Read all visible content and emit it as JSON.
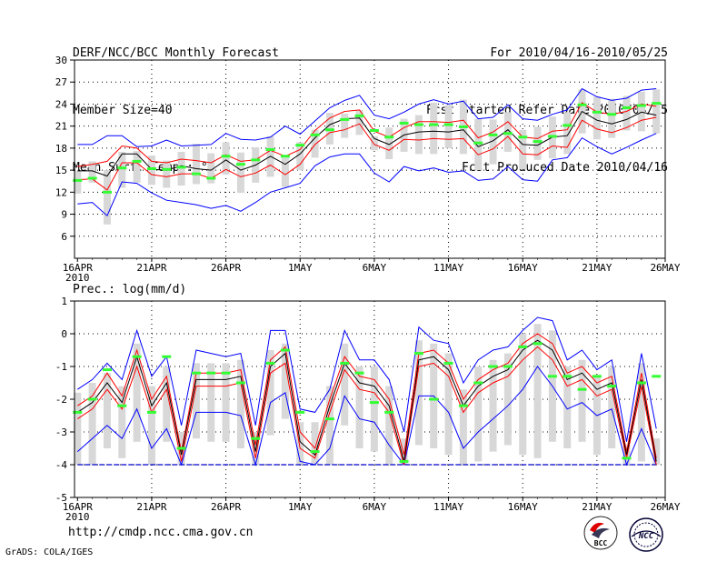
{
  "header": {
    "title": "DERF/NCC/BCC Monthly Forecast",
    "member_size": "Member Size=40",
    "variable": "Mean Surf. Temp.: °C",
    "period": "For 2010/04/16-2010/05/25",
    "started": "Fcst Started Refer Date 2010/04/15",
    "produced": "Fcst Produced Date 2010/04/16"
  },
  "footer": {
    "url": "http://cmdp.ncc.cma.gov.cn",
    "credit": "GrADS: COLA/IGES",
    "logo_left": "BCC",
    "logo_right": "NCC"
  },
  "colors": {
    "upper": "#0000ff",
    "bound": "#ff0000",
    "median": "#000000",
    "obs": "#33ff33",
    "box": "#d8d8d8",
    "axis_line": "#0000cc"
  },
  "chart_data": [
    {
      "type": "line",
      "title": "Mean Surf. Temp.: °C",
      "x_tick_labels": [
        "16APR",
        "21APR",
        "26APR",
        "1MAY",
        "6MAY",
        "11MAY",
        "16MAY",
        "21MAY",
        "26MAY"
      ],
      "x_year_label": "2010",
      "days": 40,
      "ylim": [
        3,
        30
      ],
      "yticks": [
        6,
        9,
        12,
        15,
        18,
        21,
        24,
        27,
        30
      ],
      "series": [
        {
          "name": "max",
          "values": [
            18.5,
            18.5,
            19.7,
            19.7,
            18.2,
            18.3,
            19.1,
            18.3,
            18.4,
            18.5,
            20.0,
            19.2,
            19.1,
            19.5,
            21.0,
            19.9,
            21.7,
            23.5,
            24.5,
            25.2,
            22.5,
            22.0,
            22.9,
            24.0,
            24.6,
            24.0,
            24.4,
            22.0,
            22.2,
            23.9,
            22.0,
            21.8,
            22.6,
            23.2,
            26.1,
            25.0,
            24.5,
            24.8,
            25.9,
            26.1
          ]
        },
        {
          "name": "upper",
          "values": [
            15.5,
            15.8,
            16.2,
            18.3,
            18.0,
            16.2,
            16.0,
            16.5,
            16.3,
            16.0,
            17.1,
            16.2,
            16.4,
            17.7,
            16.9,
            17.8,
            20.4,
            22.1,
            23.0,
            23.2,
            20.3,
            19.5,
            20.8,
            21.6,
            21.6,
            21.5,
            21.8,
            19.4,
            20.2,
            21.6,
            19.5,
            19.3,
            20.3,
            20.5,
            24.2,
            22.9,
            22.6,
            23.0,
            24.0,
            23.7
          ]
        },
        {
          "name": "median",
          "values": [
            14.9,
            14.9,
            14.2,
            17.2,
            17.2,
            15.1,
            15.0,
            15.6,
            15.2,
            15.0,
            16.4,
            15.0,
            15.7,
            16.9,
            15.8,
            17.2,
            19.4,
            21.2,
            22.0,
            22.1,
            19.3,
            18.5,
            19.8,
            20.2,
            20.3,
            20.2,
            20.5,
            18.2,
            19.0,
            20.5,
            18.5,
            18.4,
            19.5,
            19.7,
            23.0,
            21.8,
            21.3,
            21.9,
            22.9,
            22.5
          ]
        },
        {
          "name": "lower",
          "values": [
            13.7,
            13.8,
            12.3,
            16.0,
            16.0,
            14.4,
            14.1,
            14.5,
            14.5,
            13.9,
            15.1,
            14.1,
            14.6,
            15.7,
            14.4,
            15.8,
            18.5,
            20.1,
            20.5,
            21.3,
            18.5,
            17.7,
            19.2,
            19.1,
            19.3,
            19.2,
            19.3,
            17.1,
            17.9,
            19.6,
            17.2,
            17.1,
            18.3,
            18.1,
            21.8,
            20.6,
            20.1,
            20.8,
            21.8,
            22.2
          ]
        },
        {
          "name": "min",
          "values": [
            10.4,
            10.6,
            8.8,
            13.4,
            13.2,
            11.9,
            10.9,
            10.6,
            10.3,
            9.8,
            10.2,
            9.4,
            10.6,
            12.0,
            12.6,
            13.2,
            15.6,
            16.8,
            17.2,
            17.2,
            14.6,
            13.4,
            15.5,
            14.9,
            15.3,
            14.7,
            14.9,
            13.6,
            13.8,
            15.5,
            13.7,
            13.5,
            16.4,
            16.7,
            19.4,
            18.2,
            17.2,
            18.1,
            19.1,
            20.0
          ]
        },
        {
          "name": "box_top",
          "values": [
            14.9,
            16.2,
            15.0,
            17.5,
            17.6,
            17.0,
            16.3,
            17.5,
            18.6,
            17.3,
            18.8,
            17.4,
            18.1,
            19.6,
            16.7,
            18.8,
            20.5,
            22.8,
            22.7,
            23.2,
            19.6,
            20.8,
            22.0,
            22.5,
            24.2,
            23.9,
            24.6,
            22.0,
            21.9,
            22.9,
            20.5,
            20.9,
            22.3,
            22.9,
            26.0,
            25.0,
            24.7,
            25.1,
            25.7,
            26.0
          ]
        },
        {
          "name": "box_bottom",
          "values": [
            11.8,
            13.3,
            7.6,
            12.6,
            13.3,
            13.0,
            12.6,
            12.9,
            13.1,
            13.2,
            14.4,
            11.9,
            13.3,
            14.1,
            12.7,
            15.0,
            16.7,
            18.5,
            19.4,
            19.8,
            17.7,
            16.5,
            17.5,
            17.2,
            17.2,
            18.0,
            17.2,
            15.0,
            15.8,
            17.5,
            15.1,
            16.4,
            16.6,
            17.2,
            20.0,
            19.2,
            19.4,
            20.4,
            20.3,
            20.0
          ]
        },
        {
          "name": "observed",
          "values": [
            13.6,
            13.9,
            12.0,
            15.3,
            16.2,
            15.2,
            15.1,
            15.4,
            14.5,
            13.9,
            16.9,
            15.8,
            16.4,
            17.8,
            16.9,
            18.4,
            19.8,
            20.5,
            21.9,
            22.4,
            20.4,
            19.5,
            21.4,
            21.2,
            21.2,
            21.2,
            20.9,
            18.7,
            19.8,
            20.0,
            19.5,
            18.9,
            19.6,
            21.1,
            23.9,
            22.9,
            22.6,
            23.5,
            23.8,
            24.1
          ]
        }
      ]
    },
    {
      "type": "line",
      "title": "Prec.: log(mm/d)",
      "x_tick_labels": [
        "16APR",
        "21APR",
        "26APR",
        "1MAY",
        "6MAY",
        "11MAY",
        "16MAY",
        "21MAY",
        "26MAY"
      ],
      "x_year_label": "2010",
      "days": 40,
      "ylim": [
        -5,
        1
      ],
      "yticks": [
        -5,
        -4,
        -3,
        -2,
        -1,
        0,
        1
      ],
      "baseline": -4,
      "series": [
        {
          "name": "max",
          "values": [
            -1.7,
            -1.4,
            -0.9,
            -1.4,
            0.1,
            -1.3,
            -0.7,
            -2.8,
            -0.5,
            -0.6,
            -0.7,
            -0.6,
            -2.8,
            0.1,
            0.1,
            -2.3,
            -2.4,
            -1.7,
            0.1,
            -0.8,
            -0.8,
            -1.4,
            -3.0,
            0.2,
            -0.2,
            -0.3,
            -1.5,
            -0.8,
            -0.5,
            -0.4,
            0.1,
            0.5,
            0.4,
            -0.8,
            -0.5,
            -1.1,
            -0.8,
            -3.3,
            -0.6,
            -2.9
          ]
        },
        {
          "name": "upper",
          "values": [
            -2.2,
            -1.9,
            -1.2,
            -1.9,
            -0.5,
            -2.0,
            -1.3,
            -3.6,
            -1.2,
            -1.2,
            -1.2,
            -1.1,
            -3.4,
            -0.8,
            -0.4,
            -3.0,
            -3.5,
            -2.0,
            -0.7,
            -1.3,
            -1.4,
            -2.0,
            -3.7,
            -0.6,
            -0.5,
            -0.9,
            -2.0,
            -1.4,
            -1.1,
            -0.9,
            -0.3,
            0.0,
            -0.3,
            -1.2,
            -1.0,
            -1.5,
            -1.3,
            -3.6,
            -1.2,
            -3.8
          ]
        },
        {
          "name": "median",
          "values": [
            -2.4,
            -2.1,
            -1.5,
            -2.1,
            -0.7,
            -2.2,
            -1.5,
            -3.7,
            -1.4,
            -1.4,
            -1.4,
            -1.3,
            -3.6,
            -1.0,
            -0.6,
            -3.3,
            -3.7,
            -2.2,
            -0.9,
            -1.5,
            -1.6,
            -2.2,
            -3.9,
            -0.8,
            -0.7,
            -1.1,
            -2.2,
            -1.6,
            -1.3,
            -1.1,
            -0.5,
            -0.2,
            -0.5,
            -1.4,
            -1.2,
            -1.7,
            -1.5,
            -3.7,
            -1.4,
            -3.9
          ]
        },
        {
          "name": "lower",
          "values": [
            -2.6,
            -2.3,
            -1.7,
            -2.3,
            -1.0,
            -2.4,
            -1.7,
            -3.9,
            -1.6,
            -1.6,
            -1.6,
            -1.5,
            -3.8,
            -1.2,
            -0.9,
            -3.5,
            -3.8,
            -2.4,
            -1.1,
            -1.7,
            -1.8,
            -2.4,
            -4.0,
            -1.0,
            -0.9,
            -1.3,
            -2.4,
            -1.8,
            -1.5,
            -1.3,
            -0.8,
            -0.4,
            -0.8,
            -1.6,
            -1.4,
            -1.9,
            -1.7,
            -3.8,
            -1.6,
            -4.0
          ]
        },
        {
          "name": "min",
          "values": [
            -3.6,
            -3.2,
            -2.8,
            -3.2,
            -2.3,
            -3.5,
            -2.9,
            -4.0,
            -2.4,
            -2.4,
            -2.4,
            -2.5,
            -4.0,
            -2.1,
            -1.8,
            -3.9,
            -4.0,
            -3.5,
            -1.9,
            -2.6,
            -2.7,
            -3.4,
            -4.0,
            -1.9,
            -1.9,
            -2.4,
            -3.5,
            -3.0,
            -2.6,
            -2.2,
            -1.7,
            -1.0,
            -1.6,
            -2.3,
            -2.1,
            -2.5,
            -2.3,
            -4.0,
            -2.9,
            -4.0
          ]
        },
        {
          "name": "box_top",
          "values": [
            -1.8,
            -1.5,
            -1.2,
            -1.6,
            -0.3,
            -1.6,
            -1.0,
            -3.0,
            -0.9,
            -0.9,
            -0.9,
            -0.8,
            -3.0,
            -0.5,
            -0.3,
            -2.7,
            -2.7,
            -1.6,
            -0.3,
            -1.0,
            -1.0,
            -1.6,
            -3.2,
            -0.2,
            -0.3,
            -0.6,
            -1.7,
            -1.0,
            -0.8,
            -0.6,
            0.0,
            0.3,
            0.1,
            -1.0,
            -0.8,
            -1.3,
            -1.0,
            -3.4,
            -0.9,
            -3.2
          ]
        },
        {
          "name": "box_bottom",
          "values": [
            -4.0,
            -4.0,
            -3.5,
            -3.8,
            -3.3,
            -4.0,
            -3.3,
            -4.0,
            -3.2,
            -3.3,
            -3.3,
            -3.5,
            -4.0,
            -3.1,
            -2.6,
            -4.0,
            -4.0,
            -4.0,
            -2.8,
            -3.5,
            -3.6,
            -4.0,
            -4.0,
            -3.4,
            -3.5,
            -3.7,
            -4.0,
            -3.9,
            -3.6,
            -3.4,
            -3.7,
            -3.8,
            -3.3,
            -3.5,
            -3.3,
            -3.7,
            -3.5,
            -4.0,
            -3.9,
            -4.0
          ]
        },
        {
          "name": "observed",
          "values": [
            -2.4,
            -2.0,
            -1.1,
            -2.2,
            -0.7,
            -2.4,
            -0.7,
            -3.5,
            -1.2,
            -1.2,
            -1.2,
            -1.5,
            -3.2,
            -0.9,
            -0.5,
            -2.4,
            -3.6,
            -2.6,
            -0.9,
            -1.2,
            -2.1,
            -2.4,
            -3.9,
            -0.6,
            -2.0,
            -0.9,
            -2.2,
            -1.5,
            -1.0,
            -1.0,
            -0.4,
            -0.3,
            -1.3,
            -1.3,
            -1.7,
            -1.3,
            -1.6,
            -3.8,
            -1.5,
            -1.3
          ]
        }
      ]
    }
  ]
}
